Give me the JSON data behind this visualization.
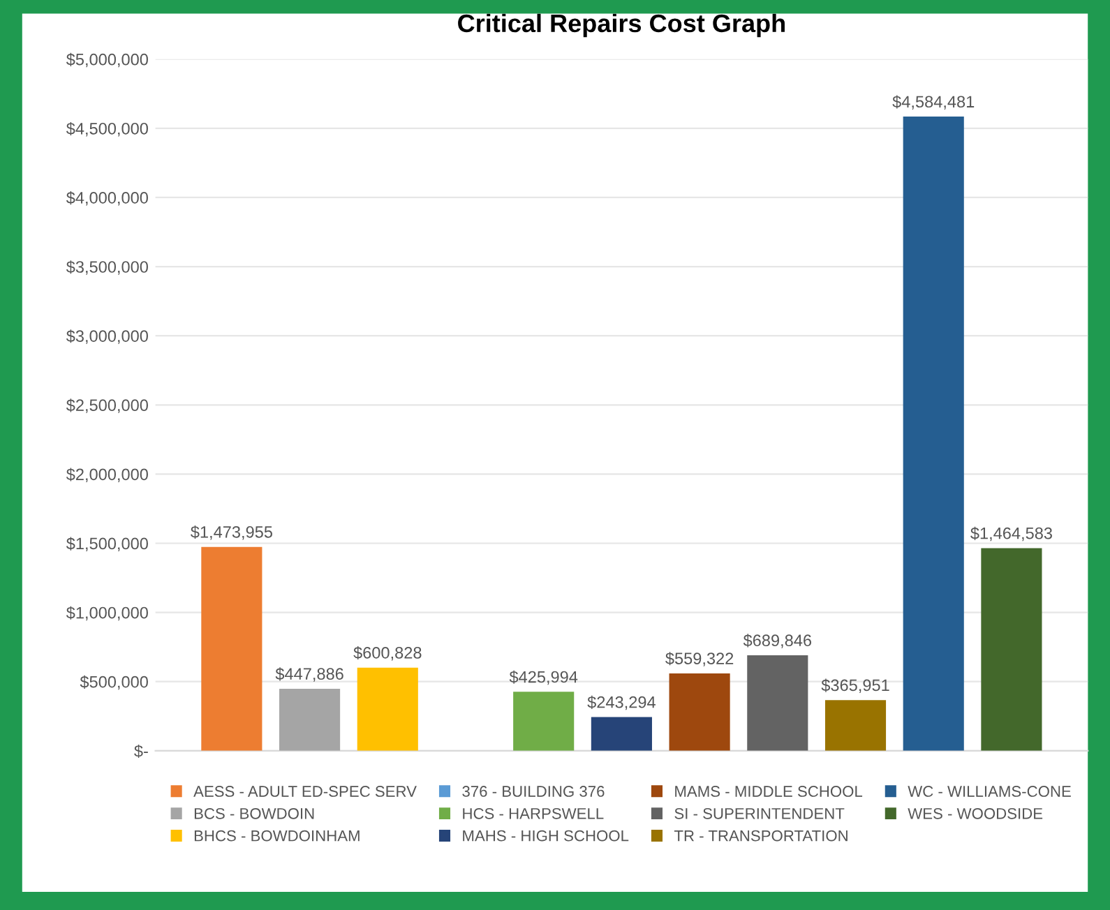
{
  "chart_data": {
    "type": "bar",
    "title": "Critical Repairs Cost Graph",
    "categories": [
      null
    ],
    "series": [
      {
        "name": "AESS - ADULT ED-SPEC SERV",
        "color": "#ed7d31",
        "values": [
          1473955
        ],
        "value_labels": [
          "$1,473,955"
        ]
      },
      {
        "name": "BCS - BOWDOIN",
        "color": "#a5a5a5",
        "values": [
          447886
        ],
        "value_labels": [
          "$447,886"
        ]
      },
      {
        "name": "BHCS - BOWDOINHAM",
        "color": "#ffc000",
        "values": [
          600828
        ],
        "value_labels": [
          "$600,828"
        ]
      },
      {
        "name": "376 - BUILDING 376",
        "color": "#5b9bd5",
        "values": [
          null
        ],
        "value_labels": [
          null
        ]
      },
      {
        "name": "HCS - HARPSWELL",
        "color": "#70ad47",
        "values": [
          425994
        ],
        "value_labels": [
          "$425,994"
        ]
      },
      {
        "name": "MAHS - HIGH SCHOOL",
        "color": "#264478",
        "values": [
          243294
        ],
        "value_labels": [
          "$243,294"
        ]
      },
      {
        "name": "MAMS - MIDDLE SCHOOL",
        "color": "#9e480e",
        "values": [
          559322
        ],
        "value_labels": [
          "$559,322"
        ]
      },
      {
        "name": "SI - SUPERINTENDENT",
        "color": "#636363",
        "values": [
          689846
        ],
        "value_labels": [
          "$689,846"
        ]
      },
      {
        "name": "TR - TRANSPORTATION",
        "color": "#997300",
        "values": [
          365951
        ],
        "value_labels": [
          "$365,951"
        ]
      },
      {
        "name": "WC - WILLIAMS-CONE",
        "color": "#255e91",
        "values": [
          4584481
        ],
        "value_labels": [
          "$4,584,481"
        ]
      },
      {
        "name": "WES - WOODSIDE",
        "color": "#43682b",
        "values": [
          1464583
        ],
        "value_labels": [
          "$1,464,583"
        ]
      }
    ],
    "ylim": [
      0,
      5000000
    ],
    "yticks": [
      {
        "value": 0,
        "label": "$-"
      },
      {
        "value": 500000,
        "label": "$500,000"
      },
      {
        "value": 1000000,
        "label": "$1,000,000"
      },
      {
        "value": 1500000,
        "label": "$1,500,000"
      },
      {
        "value": 2000000,
        "label": "$2,000,000"
      },
      {
        "value": 2500000,
        "label": "$2,500,000"
      },
      {
        "value": 3000000,
        "label": "$3,000,000"
      },
      {
        "value": 3500000,
        "label": "$3,500,000"
      },
      {
        "value": 4000000,
        "label": "$4,000,000"
      },
      {
        "value": 4500000,
        "label": "$4,500,000"
      },
      {
        "value": 5000000,
        "label": "$5,000,000"
      }
    ],
    "grid": "y",
    "legend": "bottom"
  }
}
